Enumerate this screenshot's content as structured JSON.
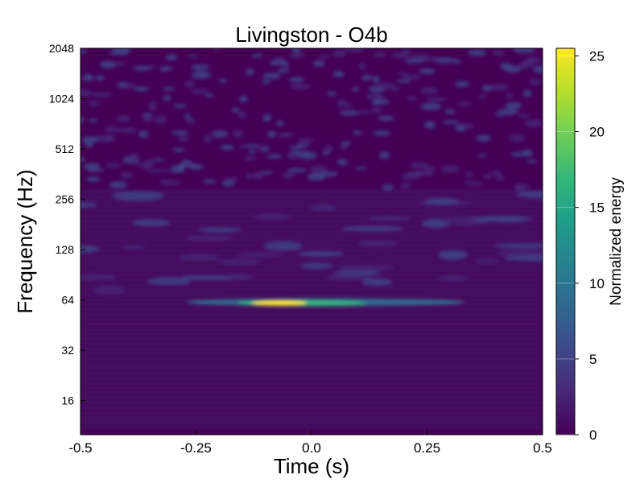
{
  "chart_data": {
    "type": "heatmap",
    "title": "Livingston - O4b",
    "xlabel": "Time (s)",
    "ylabel": "Frequency (Hz)",
    "xlim": [
      -0.5,
      0.5
    ],
    "ylim": [
      10,
      2048
    ],
    "y_scale": "log2",
    "x_ticks": [
      {
        "value": -0.5,
        "label": "-0.5"
      },
      {
        "value": -0.25,
        "label": "-0.25"
      },
      {
        "value": 0,
        "label": "0.0"
      },
      {
        "value": 0.25,
        "label": "0.25"
      },
      {
        "value": 0.5,
        "label": "0.5"
      }
    ],
    "y_ticks": [
      {
        "value": 16,
        "label": "16"
      },
      {
        "value": 32,
        "label": "32"
      },
      {
        "value": 64,
        "label": "64"
      },
      {
        "value": 128,
        "label": "128"
      },
      {
        "value": 256,
        "label": "256"
      },
      {
        "value": 512,
        "label": "512"
      },
      {
        "value": 1024,
        "label": "1024"
      },
      {
        "value": 2048,
        "label": "2048"
      }
    ],
    "colorbar": {
      "label": "Normalized energy",
      "range": [
        0,
        25.5
      ],
      "colormap": [
        "#440154",
        "#482878",
        "#3e4989",
        "#31688e",
        "#26828e",
        "#1f9e89",
        "#35b779",
        "#6ece58",
        "#b5de2b",
        "#fde725"
      ],
      "ticks": [
        {
          "value": 0,
          "label": "0"
        },
        {
          "value": 5,
          "label": "5"
        },
        {
          "value": 10,
          "label": "10"
        },
        {
          "value": 15,
          "label": "15"
        },
        {
          "value": 20,
          "label": "20"
        },
        {
          "value": 25,
          "label": "25"
        }
      ]
    },
    "features": [
      {
        "name": "chirp-track",
        "t_start": -0.27,
        "t_end": 0.33,
        "freq": 62,
        "peak_t": -0.07,
        "peak_energy": 25.5
      },
      {
        "name": "background-noise",
        "energy": 1.5
      },
      {
        "name": "high-frequency-blobs",
        "freq_min": 300,
        "freq_max": 2048,
        "energy": 7
      }
    ]
  }
}
